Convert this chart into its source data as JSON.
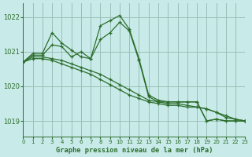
{
  "title": "Graphe pression niveau de la mer (hPa)",
  "bg_color": "#c8eae8",
  "grid_color": "#9bbfb8",
  "line_color": "#2d6e2d",
  "xlim": [
    0,
    23
  ],
  "ylim": [
    1018.55,
    1022.4
  ],
  "yticks": [
    1019,
    1020,
    1021,
    1022
  ],
  "xticks": [
    0,
    1,
    2,
    3,
    4,
    5,
    6,
    7,
    8,
    9,
    10,
    11,
    12,
    13,
    14,
    15,
    16,
    17,
    18,
    19,
    20,
    21,
    22,
    23
  ],
  "series": [
    [
      1020.7,
      1020.95,
      1020.95,
      1021.55,
      1021.25,
      1021.05,
      1020.85,
      1020.8,
      1021.75,
      1021.9,
      1022.05,
      1021.65,
      1020.8,
      1019.75,
      1019.6,
      1019.55,
      1019.55,
      1019.55,
      1019.55,
      1019.0,
      1019.05,
      1019.0,
      1019.0,
      1019.0
    ],
    [
      1020.7,
      1020.9,
      1020.9,
      1021.2,
      1021.15,
      1020.85,
      1021.0,
      1020.8,
      1021.35,
      1021.55,
      1021.85,
      1021.6,
      1020.75,
      1019.7,
      1019.55,
      1019.55,
      1019.55,
      1019.55,
      1019.55,
      1019.0,
      1019.05,
      1019.0,
      1019.0,
      1019.0
    ],
    [
      1020.7,
      1020.85,
      1020.85,
      1020.8,
      1020.75,
      1020.65,
      1020.55,
      1020.45,
      1020.35,
      1020.2,
      1020.05,
      1019.9,
      1019.75,
      1019.6,
      1019.55,
      1019.5,
      1019.5,
      1019.45,
      1019.4,
      1019.35,
      1019.25,
      1019.15,
      1019.05,
      1019.0
    ],
    [
      1020.7,
      1020.8,
      1020.8,
      1020.75,
      1020.65,
      1020.55,
      1020.45,
      1020.35,
      1020.2,
      1020.05,
      1019.9,
      1019.75,
      1019.65,
      1019.55,
      1019.5,
      1019.45,
      1019.45,
      1019.4,
      1019.4,
      1019.35,
      1019.25,
      1019.1,
      1019.05,
      1019.0
    ]
  ]
}
